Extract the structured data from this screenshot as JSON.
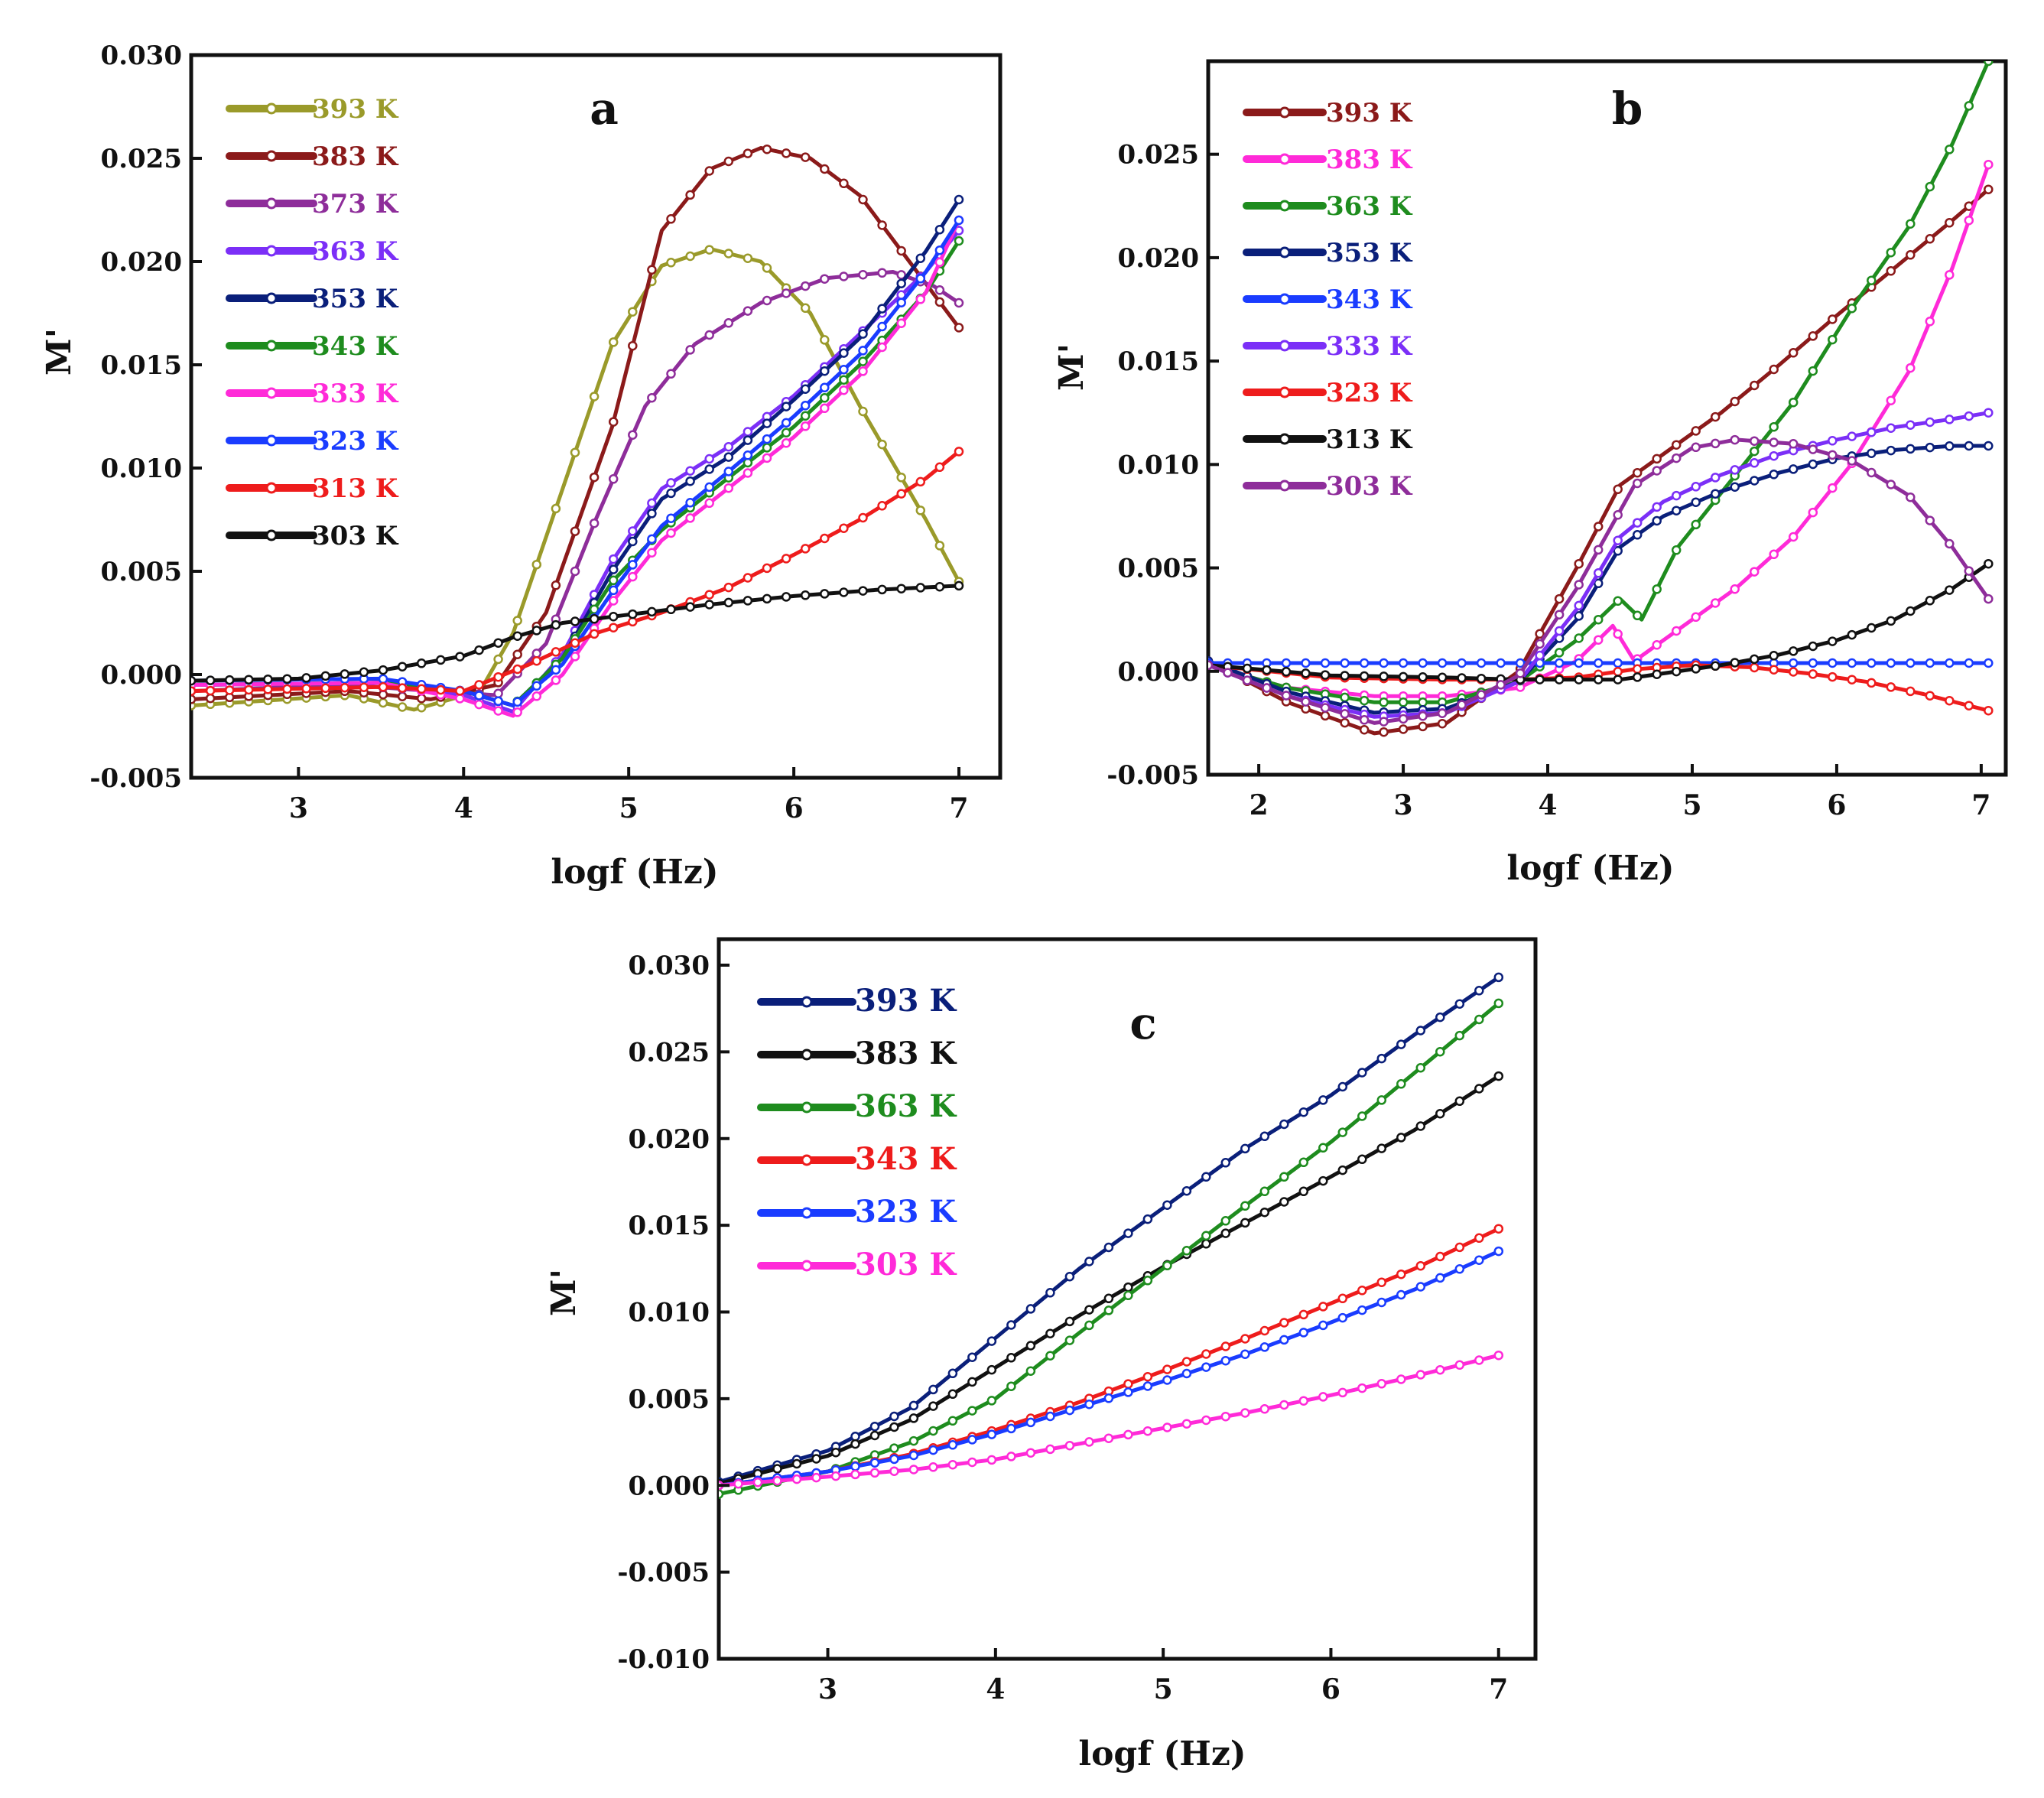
{
  "chart_data": [
    {
      "id": "a",
      "type": "line",
      "panel_label": "a",
      "xlabel": "logf (Hz)",
      "ylabel": "M'",
      "xlim": [
        2.35,
        7.25
      ],
      "ylim": [
        -0.005,
        0.03
      ],
      "xticks": [
        3,
        4,
        5,
        6,
        7
      ],
      "xtick_labels": [
        "3",
        "4",
        "5",
        "6",
        "7"
      ],
      "yticks": [
        -0.005,
        0,
        0.005,
        0.01,
        0.015,
        0.02,
        0.025,
        0.03
      ],
      "ytick_labels": [
        "-0.005",
        "0.000",
        "0.005",
        "0.010",
        "0.015",
        "0.020",
        "0.025",
        "0.030"
      ],
      "legend_position": "top-left",
      "series": [
        {
          "name": "393 K",
          "color": "#9a9a2a",
          "x": [
            2.35,
            3.3,
            3.7,
            4.1,
            4.3,
            4.6,
            4.9,
            5.2,
            5.5,
            5.8,
            6.1,
            6.4,
            6.8,
            7.0
          ],
          "y": [
            -0.0015,
            -0.001,
            -0.0017,
            -0.0008,
            0.002,
            0.009,
            0.016,
            0.0198,
            0.0206,
            0.02,
            0.0175,
            0.013,
            0.0075,
            0.0045
          ]
        },
        {
          "name": "383 K",
          "color": "#8b1a1a",
          "x": [
            2.35,
            3.3,
            3.8,
            4.2,
            4.5,
            4.9,
            5.2,
            5.5,
            5.8,
            6.1,
            6.4,
            6.7,
            7.0
          ],
          "y": [
            -0.0012,
            -0.0008,
            -0.0012,
            -0.0005,
            0.003,
            0.012,
            0.0215,
            0.0245,
            0.0255,
            0.025,
            0.0232,
            0.02,
            0.0168
          ]
        },
        {
          "name": "373 K",
          "color": "#8e2d9a",
          "x": [
            2.35,
            3.3,
            3.8,
            4.2,
            4.5,
            4.8,
            5.1,
            5.4,
            5.8,
            6.2,
            6.6,
            6.85,
            7.0
          ],
          "y": [
            -0.0008,
            -0.0005,
            -0.0008,
            -0.001,
            0.0015,
            0.0075,
            0.013,
            0.016,
            0.018,
            0.0192,
            0.0195,
            0.0188,
            0.018
          ]
        },
        {
          "name": "363 K",
          "color": "#7b2ff7",
          "x": [
            2.35,
            3.5,
            4.0,
            4.3,
            4.6,
            4.9,
            5.2,
            5.6,
            6.0,
            6.4,
            6.8,
            7.0
          ],
          "y": [
            -0.0005,
            -0.0004,
            -0.001,
            -0.0018,
            0.001,
            0.0055,
            0.009,
            0.011,
            0.0135,
            0.0165,
            0.0195,
            0.0215
          ]
        },
        {
          "name": "353 K",
          "color": "#0a1f7a",
          "x": [
            2.35,
            3.5,
            4.0,
            4.3,
            4.6,
            4.9,
            5.2,
            5.6,
            6.0,
            6.4,
            6.8,
            7.0
          ],
          "y": [
            -0.0005,
            -0.0004,
            -0.0008,
            -0.0015,
            0.0008,
            0.005,
            0.0085,
            0.0105,
            0.0133,
            0.0163,
            0.0205,
            0.023
          ]
        },
        {
          "name": "343 K",
          "color": "#1e8c1e",
          "x": [
            2.35,
            3.5,
            4.0,
            4.3,
            4.6,
            4.9,
            5.2,
            5.6,
            6.0,
            6.4,
            6.8,
            7.0
          ],
          "y": [
            -0.0005,
            -0.0004,
            -0.0008,
            -0.0015,
            0.0008,
            0.0045,
            0.007,
            0.0095,
            0.012,
            0.015,
            0.0185,
            0.021
          ]
        },
        {
          "name": "333 K",
          "color": "#ff2ad8",
          "x": [
            2.35,
            3.5,
            4.0,
            4.3,
            4.6,
            4.9,
            5.2,
            5.6,
            6.0,
            6.4,
            6.8,
            7.0
          ],
          "y": [
            -0.0005,
            -0.0004,
            -0.0012,
            -0.002,
            0.0,
            0.0035,
            0.0065,
            0.009,
            0.0115,
            0.0145,
            0.0185,
            0.022
          ]
        },
        {
          "name": "323 K",
          "color": "#1a3cff",
          "x": [
            2.35,
            3.5,
            4.0,
            4.3,
            4.6,
            4.9,
            5.2,
            5.6,
            6.0,
            6.4,
            6.8,
            7.0
          ],
          "y": [
            -0.0003,
            -0.0002,
            -0.0008,
            -0.0015,
            0.0005,
            0.004,
            0.0072,
            0.0098,
            0.0125,
            0.0155,
            0.0195,
            0.022
          ]
        },
        {
          "name": "313 K",
          "color": "#ee1c1c",
          "x": [
            2.35,
            3.5,
            4.0,
            4.4,
            4.8,
            5.2,
            5.6,
            6.0,
            6.4,
            6.8,
            7.0
          ],
          "y": [
            -0.0008,
            -0.0006,
            -0.0008,
            0.0005,
            0.002,
            0.003,
            0.0042,
            0.0058,
            0.0075,
            0.0095,
            0.0108
          ]
        },
        {
          "name": "303 K",
          "color": "#111111",
          "x": [
            2.35,
            3.0,
            3.5,
            4.0,
            4.3,
            4.6,
            5.0,
            5.5,
            6.0,
            6.5,
            7.0
          ],
          "y": [
            -0.0003,
            -0.0002,
            0.0002,
            0.0009,
            0.0018,
            0.0025,
            0.0029,
            0.0034,
            0.0038,
            0.0041,
            0.0043
          ]
        }
      ]
    },
    {
      "id": "b",
      "type": "line",
      "panel_label": "b",
      "xlabel": "logf (Hz)",
      "ylabel": "M'",
      "xlim": [
        1.65,
        7.17
      ],
      "ylim": [
        -0.005,
        0.0295
      ],
      "xticks": [
        2,
        3,
        4,
        5,
        6,
        7
      ],
      "xtick_labels": [
        "2",
        "3",
        "4",
        "5",
        "6",
        "7"
      ],
      "yticks": [
        -0.005,
        0,
        0.005,
        0.01,
        0.015,
        0.02,
        0.025
      ],
      "ytick_labels": [
        "-0.005",
        "0.000",
        "0.005",
        "0.010",
        "0.015",
        "0.020",
        "0.025"
      ],
      "legend_position": "top-left",
      "series": [
        {
          "name": "393 K",
          "color": "#8b1a1a",
          "x": [
            1.65,
            2.2,
            2.8,
            3.3,
            3.8,
            4.2,
            4.5,
            4.8,
            5.2,
            5.6,
            6.0,
            6.4,
            6.8,
            7.05
          ],
          "y": [
            0.0005,
            -0.0015,
            -0.003,
            -0.0025,
            0.0,
            0.005,
            0.009,
            0.0105,
            0.0125,
            0.0148,
            0.0172,
            0.0195,
            0.0218,
            0.0233
          ]
        },
        {
          "name": "383 K",
          "color": "#ff2ad8",
          "x": [
            1.65,
            2.2,
            2.8,
            3.3,
            3.8,
            4.2,
            4.45,
            4.6,
            4.9,
            5.3,
            5.7,
            6.1,
            6.5,
            6.8,
            7.05
          ],
          "y": [
            0.0003,
            -0.0008,
            -0.0012,
            -0.0012,
            -0.0008,
            0.0005,
            0.0022,
            0.0005,
            0.002,
            0.004,
            0.0065,
            0.01,
            0.0145,
            0.0195,
            0.0245
          ]
        },
        {
          "name": "363 K",
          "color": "#1e8c1e",
          "x": [
            1.65,
            2.2,
            2.8,
            3.3,
            3.8,
            4.2,
            4.5,
            4.65,
            4.9,
            5.3,
            5.7,
            6.1,
            6.5,
            6.8,
            7.05
          ],
          "y": [
            0.0003,
            -0.0008,
            -0.0015,
            -0.0015,
            -0.0005,
            0.0015,
            0.0035,
            0.0025,
            0.006,
            0.0095,
            0.013,
            0.0175,
            0.0215,
            0.0255,
            0.0295
          ]
        },
        {
          "name": "353 K",
          "color": "#0a1f7a",
          "x": [
            1.65,
            2.2,
            2.8,
            3.3,
            3.8,
            4.2,
            4.5,
            4.8,
            5.2,
            5.6,
            6.0,
            6.4,
            6.8,
            7.05
          ],
          "y": [
            0.0005,
            -0.001,
            -0.002,
            -0.0018,
            -0.0005,
            0.0025,
            0.006,
            0.0075,
            0.0087,
            0.0096,
            0.0103,
            0.0107,
            0.0109,
            0.0109
          ]
        },
        {
          "name": "343 K",
          "color": "#1a3cff",
          "x": [
            1.65,
            3.0,
            5.0,
            7.05
          ],
          "y": [
            0.0004,
            0.0004,
            0.0004,
            0.0004
          ]
        },
        {
          "name": "333 K",
          "color": "#7b2ff7",
          "x": [
            1.65,
            2.2,
            2.8,
            3.3,
            3.8,
            4.2,
            4.5,
            4.8,
            5.2,
            5.6,
            6.0,
            6.4,
            6.8,
            7.05
          ],
          "y": [
            0.0003,
            -0.0012,
            -0.0022,
            -0.002,
            -0.0005,
            0.003,
            0.0065,
            0.0082,
            0.0095,
            0.0105,
            0.0112,
            0.0118,
            0.0122,
            0.0125
          ]
        },
        {
          "name": "323 K",
          "color": "#ee1c1c",
          "x": [
            1.65,
            2.5,
            3.3,
            3.8,
            4.2,
            4.6,
            5.0,
            5.4,
            5.8,
            6.2,
            6.6,
            7.05
          ],
          "y": [
            0.0003,
            -0.0003,
            -0.0004,
            -0.0004,
            -0.0003,
            0.0001,
            0.0003,
            0.0002,
            -0.0001,
            -0.0005,
            -0.0011,
            -0.0019
          ]
        },
        {
          "name": "313 K",
          "color": "#111111",
          "x": [
            1.65,
            2.5,
            3.3,
            3.8,
            4.2,
            4.5,
            4.8,
            5.2,
            5.6,
            6.0,
            6.4,
            6.8,
            7.05
          ],
          "y": [
            0.0003,
            -0.0002,
            -0.0003,
            -0.0004,
            -0.0004,
            -0.0004,
            -0.0001,
            0.0003,
            0.0008,
            0.0015,
            0.0025,
            0.004,
            0.0052
          ]
        },
        {
          "name": "303 K",
          "color": "#8e2d9a",
          "x": [
            1.65,
            2.2,
            2.8,
            3.3,
            3.8,
            4.2,
            4.6,
            5.0,
            5.3,
            5.7,
            6.1,
            6.5,
            6.8,
            7.05
          ],
          "y": [
            0.0003,
            -0.0012,
            -0.0025,
            -0.002,
            -0.0002,
            0.004,
            0.009,
            0.0108,
            0.0112,
            0.011,
            0.0102,
            0.0085,
            0.006,
            0.0035
          ]
        }
      ]
    },
    {
      "id": "c",
      "type": "line",
      "panel_label": "c",
      "xlabel": "logf (Hz)",
      "ylabel": "M'",
      "xlim": [
        2.35,
        7.22
      ],
      "ylim": [
        -0.01,
        0.0315
      ],
      "xticks": [
        3,
        4,
        5,
        6,
        7
      ],
      "xtick_labels": [
        "3",
        "4",
        "5",
        "6",
        "7"
      ],
      "yticks": [
        -0.01,
        -0.005,
        0,
        0.005,
        0.01,
        0.015,
        0.02,
        0.025,
        0.03
      ],
      "ytick_labels": [
        "-0.010",
        "-0.005",
        "0.000",
        "0.005",
        "0.010",
        "0.015",
        "0.020",
        "0.025",
        "0.030"
      ],
      "legend_position": "top-left",
      "series": [
        {
          "name": "393 K",
          "color": "#0a1f7a",
          "x": [
            2.35,
            3.0,
            3.5,
            4.0,
            4.5,
            5.0,
            5.5,
            6.0,
            6.5,
            7.0
          ],
          "y": [
            0.0002,
            0.002,
            0.0045,
            0.0085,
            0.0125,
            0.016,
            0.0195,
            0.0225,
            0.026,
            0.0293
          ]
        },
        {
          "name": "383 K",
          "color": "#111111",
          "x": [
            2.35,
            3.0,
            3.5,
            4.0,
            4.5,
            5.0,
            5.5,
            6.0,
            6.5,
            7.0
          ],
          "y": [
            0.0001,
            0.0017,
            0.0038,
            0.0068,
            0.0098,
            0.0126,
            0.0152,
            0.0178,
            0.0205,
            0.0236
          ]
        },
        {
          "name": "363 K",
          "color": "#1e8c1e",
          "x": [
            2.35,
            3.0,
            3.5,
            4.0,
            4.5,
            5.0,
            5.5,
            6.0,
            6.5,
            7.0
          ],
          "y": [
            -0.0005,
            0.0008,
            0.0025,
            0.005,
            0.0088,
            0.0125,
            0.0162,
            0.0198,
            0.0238,
            0.0278
          ]
        },
        {
          "name": "343 K",
          "color": "#ee1c1c",
          "x": [
            2.35,
            3.0,
            3.5,
            4.0,
            4.5,
            5.0,
            5.5,
            6.0,
            6.5,
            7.0
          ],
          "y": [
            0.0,
            0.0008,
            0.0018,
            0.0032,
            0.0048,
            0.0066,
            0.0085,
            0.0105,
            0.0125,
            0.0148
          ]
        },
        {
          "name": "323 K",
          "color": "#1a3cff",
          "x": [
            2.35,
            3.0,
            3.5,
            4.0,
            4.5,
            5.0,
            5.5,
            6.0,
            6.5,
            7.0
          ],
          "y": [
            0.0,
            0.0008,
            0.0017,
            0.003,
            0.0045,
            0.006,
            0.0076,
            0.0094,
            0.0113,
            0.0135
          ]
        },
        {
          "name": "303 K",
          "color": "#ff2ad8",
          "x": [
            2.35,
            3.0,
            3.5,
            4.0,
            4.5,
            5.0,
            5.5,
            6.0,
            6.5,
            7.0
          ],
          "y": [
            0.0,
            0.0005,
            0.0009,
            0.0015,
            0.0024,
            0.0033,
            0.0042,
            0.0052,
            0.0063,
            0.0075
          ]
        }
      ]
    }
  ]
}
